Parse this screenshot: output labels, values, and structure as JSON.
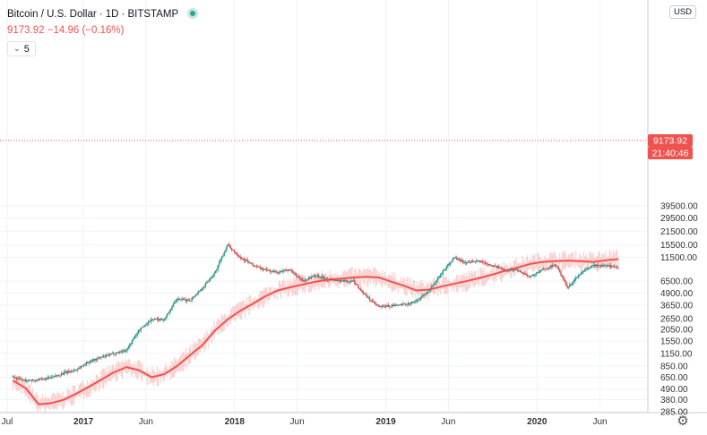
{
  "legend": {
    "symbol": "Bitcoin / U.S. Dollar",
    "interval": "1D",
    "exchange": "BITSTAMP",
    "price_line": "9173.92 −14.96 (−0.16%)"
  },
  "ma_length": "5",
  "currency": "USD",
  "last_price_label": "9173.92",
  "countdown_label": "21:40:46",
  "colors": {
    "ma_line": "#ef5350",
    "price_band": "#f6c3c1",
    "up_candle": "#26a69a",
    "down_candle": "#ef5350"
  },
  "chart_data": {
    "type": "line",
    "title": "Bitcoin / U.S. Dollar · 1D · BITSTAMP",
    "xlabel": "",
    "ylabel": "",
    "y_scale": "log",
    "x_ticks": [
      "Jul",
      "2017",
      "Jun",
      "2018",
      "Jun",
      "2019",
      "Jun",
      "2020",
      "Jun"
    ],
    "y_ticks": [
      "39500.00",
      "29500.00",
      "21500.00",
      "15500.00",
      "11500.00",
      "6500.00",
      "4900.00",
      "3650.00",
      "2650.00",
      "2050.00",
      "1550.00",
      "1150.00",
      "850.00",
      "650.00",
      "490.00",
      "380.00",
      "285.00"
    ],
    "last_price": 9173.92,
    "series": [
      {
        "name": "",
        "x": [
          "2016-07",
          "2016-08",
          "2016-09",
          "2016-10",
          "2016-11",
          "2016-12",
          "2017-01",
          "2017-02",
          "2017-03",
          "2017-04",
          "2017-05",
          "2017-06",
          "2017-07",
          "2017-08",
          "2017-09",
          "2017-10",
          "2017-11",
          "2017-12",
          "2018-01",
          "2018-02",
          "2018-03",
          "2018-04",
          "2018-05",
          "2018-06",
          "2018-07",
          "2018-08",
          "2018-09",
          "2018-10",
          "2018-11",
          "2018-12",
          "2019-01",
          "2019-02",
          "2019-03",
          "2019-04",
          "2019-05",
          "2019-06",
          "2019-07",
          "2019-08",
          "2019-09",
          "2019-10",
          "2019-11",
          "2019-12",
          "2020-01",
          "2020-02",
          "2020-03",
          "2020-04",
          "2020-05",
          "2020-06",
          "2020-07"
        ],
        "values": [
          650,
          600,
          610,
          640,
          720,
          780,
          950,
          1050,
          1150,
          1250,
          2000,
          2600,
          2600,
          4200,
          4100,
          5500,
          8000,
          15500,
          11500,
          9500,
          8500,
          8000,
          8500,
          6500,
          7500,
          6800,
          6500,
          6500,
          4500,
          3500,
          3600,
          3700,
          4000,
          5200,
          7800,
          11500,
          10000,
          10500,
          9500,
          8500,
          8500,
          7200,
          8500,
          9700,
          5500,
          7800,
          9500,
          9300,
          9173.92
        ]
      },
      {
        "name": "",
        "x": [
          "2016-07",
          "2016-08",
          "2016-09",
          "2016-10",
          "2016-11",
          "2016-12",
          "2017-01",
          "2017-02",
          "2017-03",
          "2017-04",
          "2017-05",
          "2017-06",
          "2017-07",
          "2017-08",
          "2017-09",
          "2017-10",
          "2017-11",
          "2017-12",
          "2018-01",
          "2018-02",
          "2018-03",
          "2018-04",
          "2018-05",
          "2018-06",
          "2018-07",
          "2018-08",
          "2018-09",
          "2018-10",
          "2018-11",
          "2018-12",
          "2019-01",
          "2019-02",
          "2019-03",
          "2019-04",
          "2019-05",
          "2019-06",
          "2019-07",
          "2019-08",
          "2019-09",
          "2019-10",
          "2019-11",
          "2019-12",
          "2020-01",
          "2020-02",
          "2020-03",
          "2020-04",
          "2020-05",
          "2020-06",
          "2020-07"
        ],
        "values": [
          600,
          500,
          340,
          350,
          380,
          440,
          520,
          620,
          730,
          830,
          770,
          650,
          700,
          850,
          1100,
          1400,
          2000,
          2600,
          3200,
          3800,
          4500,
          5200,
          5600,
          6000,
          6400,
          6700,
          6900,
          7100,
          7200,
          7100,
          6400,
          5800,
          5200,
          5300,
          5700,
          6100,
          6500,
          7000,
          7600,
          8300,
          9000,
          9800,
          10300,
          10500,
          10600,
          10500,
          10300,
          10700,
          11000
        ]
      }
    ]
  }
}
